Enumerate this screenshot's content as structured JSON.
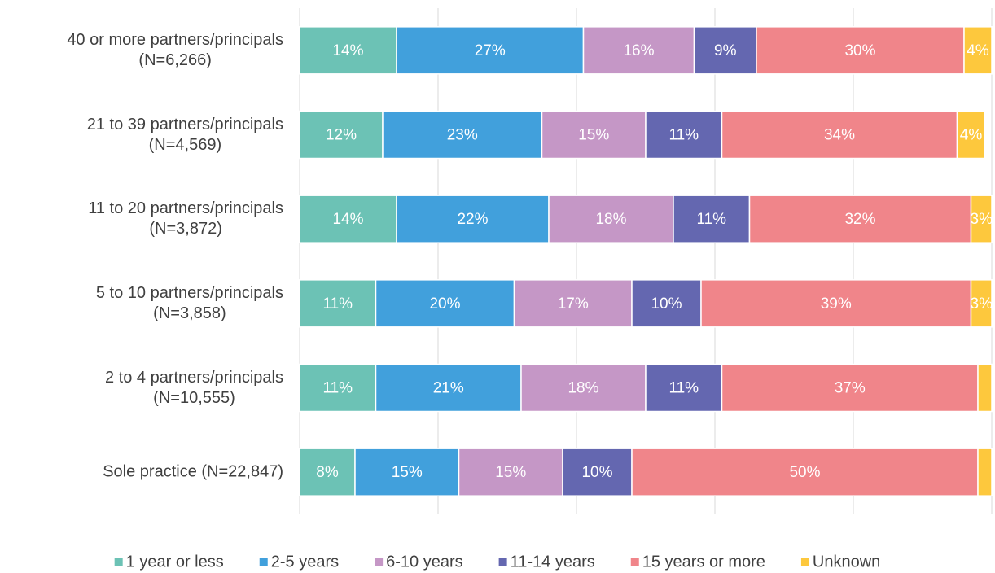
{
  "chart_data": {
    "type": "stacked-barh",
    "categories": [
      "40 or more partners/principals\n(N=6,266)",
      "21 to 39 partners/principals\n(N=4,569)",
      "11 to 20 partners/principals\n(N=3,872)",
      "5 to 10 partners/principals\n(N=3,858)",
      "2 to 4 partners/principals\n(N=10,555)",
      "Sole practice (N=22,847)"
    ],
    "series": [
      {
        "name": "1 year or less",
        "color": "#6cc2b5",
        "values": [
          14,
          12,
          14,
          11,
          11,
          8
        ],
        "value_labels": [
          "14%",
          "12%",
          "14%",
          "11%",
          "11%",
          "8%"
        ]
      },
      {
        "name": "2-5 years",
        "color": "#41a0dc",
        "values": [
          27,
          23,
          22,
          20,
          21,
          15
        ],
        "value_labels": [
          "27%",
          "23%",
          "22%",
          "20%",
          "21%",
          "15%"
        ]
      },
      {
        "name": "6-10 years",
        "color": "#c597c6",
        "values": [
          16,
          15,
          18,
          17,
          18,
          15
        ],
        "value_labels": [
          "16%",
          "15%",
          "18%",
          "17%",
          "18%",
          "15%"
        ]
      },
      {
        "name": "11-14 years",
        "color": "#6467b0",
        "values": [
          9,
          11,
          11,
          10,
          11,
          10
        ],
        "value_labels": [
          "9%",
          "11%",
          "11%",
          "10%",
          "11%",
          "10%"
        ]
      },
      {
        "name": "15 years or more",
        "color": "#f0858a",
        "values": [
          30,
          34,
          32,
          39,
          37,
          50
        ],
        "value_labels": [
          "30%",
          "34%",
          "32%",
          "39%",
          "37%",
          "50%"
        ]
      },
      {
        "name": "Unknown",
        "color": "#fdc83d",
        "values": [
          4,
          4,
          3,
          3,
          2,
          2
        ],
        "value_labels": [
          "4%",
          "4%",
          "3%",
          "3%",
          null,
          null
        ]
      }
    ],
    "xlim": [
      0,
      100
    ],
    "xticks": [
      0,
      20,
      40,
      60,
      80,
      100
    ],
    "grid": true,
    "legend": "bottom"
  }
}
